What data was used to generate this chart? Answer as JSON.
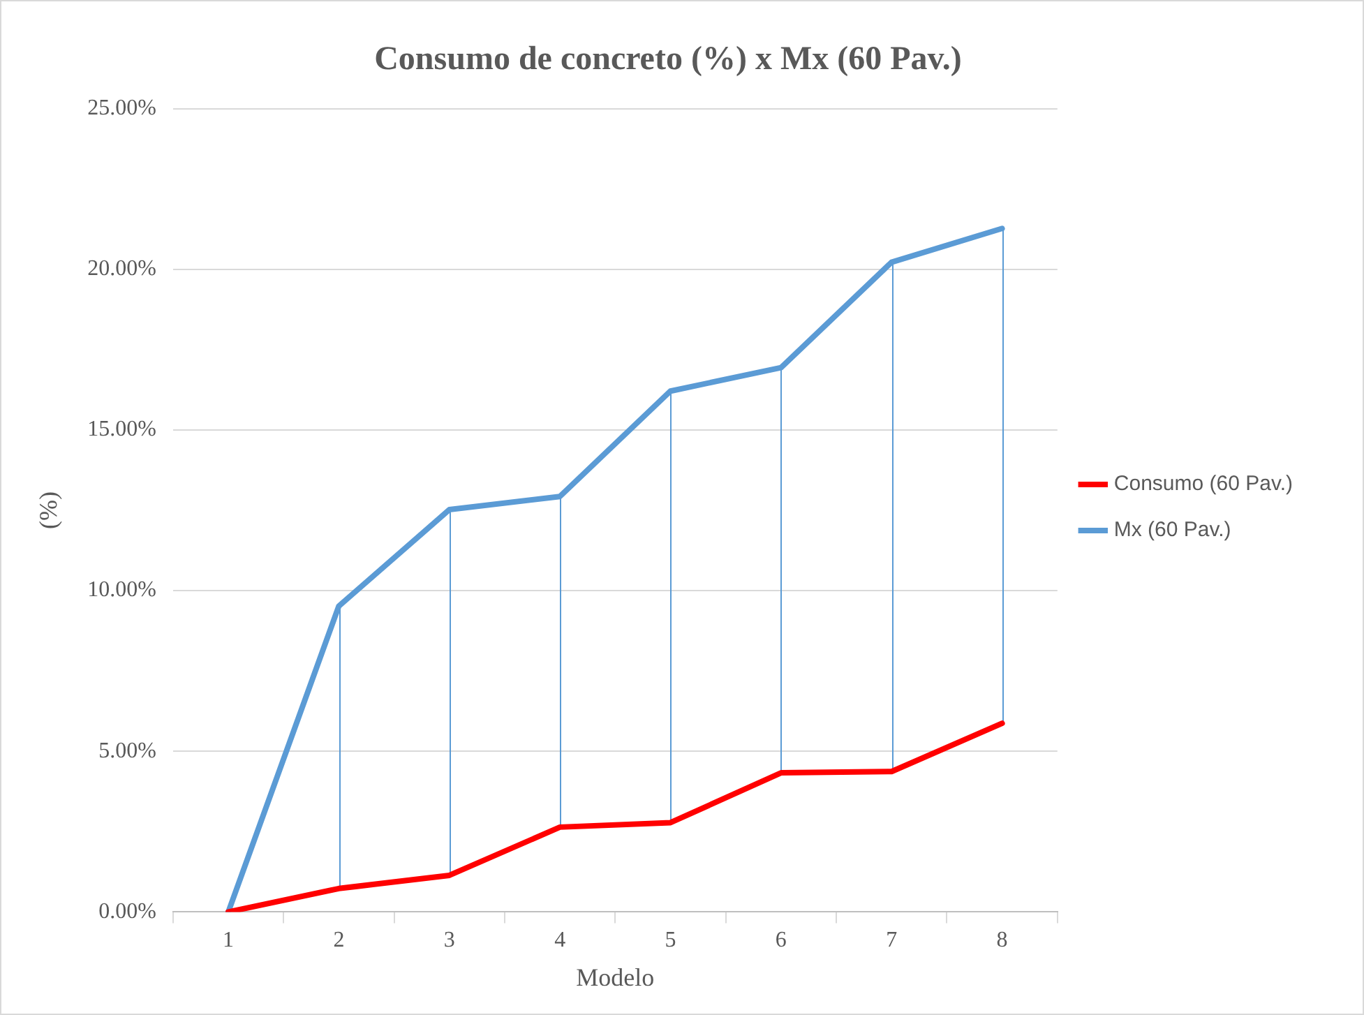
{
  "chart_data": {
    "type": "line",
    "title": "Consumo de concreto (%) x Mx (60 Pav.)",
    "xlabel": "Modelo",
    "ylabel": "(%)",
    "categories": [
      "1",
      "2",
      "3",
      "4",
      "5",
      "6",
      "7",
      "8"
    ],
    "series": [
      {
        "name": "Consumo (60 Pav.)",
        "color": "#ff0000",
        "values": [
          0,
          0.73,
          1.14,
          2.64,
          2.78,
          4.33,
          4.37,
          5.87
        ],
        "errors": [
          null,
          [
            0.73,
            9.52
          ],
          [
            1.14,
            12.52
          ],
          [
            2.64,
            12.93
          ],
          [
            2.78,
            16.21
          ],
          [
            4.33,
            16.94
          ],
          [
            4.37,
            20.22
          ],
          [
            5.87,
            21.27
          ]
        ]
      },
      {
        "name": "Mx (60 Pav.)",
        "color": "#5b9bd5",
        "values": [
          0,
          9.52,
          12.52,
          12.93,
          16.21,
          16.94,
          20.22,
          21.27
        ]
      }
    ],
    "ylim": [
      0,
      25
    ],
    "yticks": [
      {
        "value": 0,
        "label": "0.00%"
      },
      {
        "value": 5,
        "label": "5.00%"
      },
      {
        "value": 10,
        "label": "10.00%"
      },
      {
        "value": 15,
        "label": "15.00%"
      },
      {
        "value": 20,
        "label": "20.00%"
      },
      {
        "value": 25,
        "label": "25.00%"
      }
    ],
    "grid": "y",
    "legend": "right",
    "marker": "none",
    "line_style": "solid"
  }
}
